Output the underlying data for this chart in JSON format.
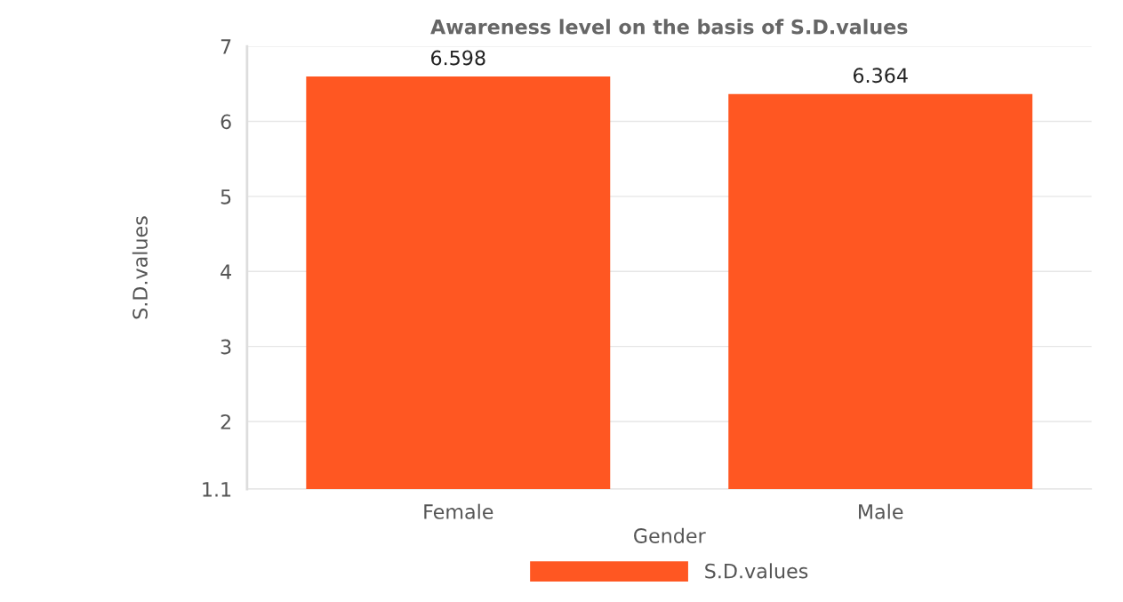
{
  "chart_data": {
    "type": "bar",
    "title": "Awareness level on the basis of S.D.values",
    "xlabel": "Gender",
    "ylabel": "S.D.values",
    "categories": [
      "Female",
      "Male"
    ],
    "series": [
      {
        "name": "S.D.values",
        "color": "#ff5722",
        "values": [
          6.598,
          6.364
        ]
      }
    ],
    "ylim": [
      1.1,
      7
    ],
    "yticks": [
      1.1,
      2,
      3,
      4,
      5,
      6,
      7
    ],
    "grid": "y",
    "data_labels": true,
    "legend": "bottom"
  }
}
